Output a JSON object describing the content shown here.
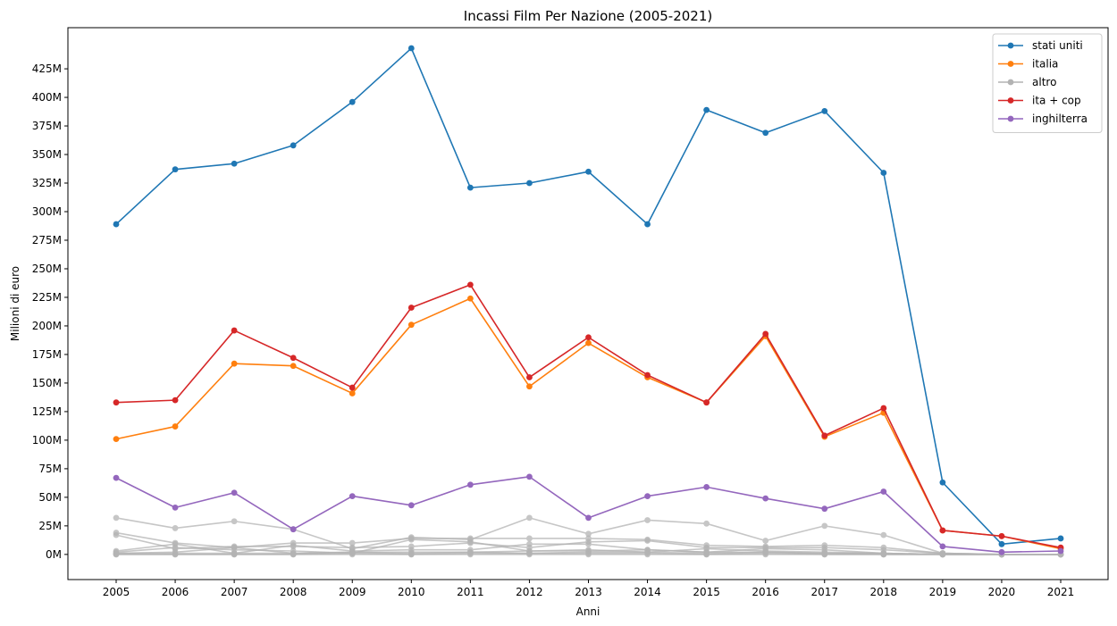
{
  "chart_data": {
    "type": "line",
    "title": "Incassi Film Per Nazione (2005-2021)",
    "xlabel": "Anni",
    "ylabel": "Milioni di euro",
    "x": [
      "2005",
      "2006",
      "2007",
      "2008",
      "2009",
      "2010",
      "2011",
      "2012",
      "2013",
      "2014",
      "2015",
      "2016",
      "2017",
      "2018",
      "2019",
      "2020",
      "2021"
    ],
    "y_ticks": [
      0,
      25,
      50,
      75,
      100,
      125,
      150,
      175,
      200,
      225,
      250,
      275,
      300,
      325,
      350,
      375,
      400,
      425
    ],
    "y_tick_labels": [
      "0M",
      "25M",
      "50M",
      "75M",
      "100M",
      "125M",
      "150M",
      "175M",
      "200M",
      "225M",
      "250M",
      "275M",
      "300M",
      "325M",
      "350M",
      "375M",
      "400M",
      "425M"
    ],
    "ylim": [
      -22,
      461
    ],
    "grid": false,
    "legend_position": "top-right",
    "legend": [
      {
        "label": "stati uniti",
        "color": "#1f77b4"
      },
      {
        "label": "italia",
        "color": "#ff7f0e"
      },
      {
        "label": "altro",
        "color": "#b3b3b3"
      },
      {
        "label": "ita + cop",
        "color": "#d62728"
      },
      {
        "label": "inghilterra",
        "color": "#9467bd"
      }
    ],
    "series": [
      {
        "name": "stati uniti",
        "color": "#1f77b4",
        "values": [
          289,
          337,
          342,
          358,
          396,
          443,
          321,
          325,
          335,
          289,
          389,
          369,
          388,
          334,
          63,
          9,
          14
        ]
      },
      {
        "name": "italia",
        "color": "#ff7f0e",
        "values": [
          101,
          112,
          167,
          165,
          141,
          201,
          224,
          147,
          185,
          155,
          133,
          191,
          103,
          124,
          21,
          16,
          5
        ]
      },
      {
        "name": "ita + cop",
        "color": "#d62728",
        "values": [
          133,
          135,
          196,
          172,
          146,
          216,
          236,
          155,
          190,
          157,
          133,
          193,
          104,
          128,
          21,
          16,
          6
        ]
      },
      {
        "name": "inghilterra",
        "color": "#9467bd",
        "values": [
          67,
          41,
          54,
          22,
          51,
          43,
          61,
          68,
          32,
          51,
          59,
          49,
          40,
          55,
          7,
          2,
          3
        ]
      }
    ],
    "other_series": {
      "color": "#b3b3b3",
      "lines": [
        [
          32,
          23,
          29,
          22,
          5,
          15,
          13,
          32,
          18,
          30,
          27,
          12,
          25,
          17,
          1,
          0,
          0
        ],
        [
          19,
          10,
          6,
          10,
          10,
          14,
          14,
          14,
          14,
          13,
          8,
          7,
          8,
          6,
          1,
          0,
          0
        ],
        [
          17,
          5,
          7,
          7,
          6,
          7,
          10,
          6,
          11,
          12,
          6,
          6,
          6,
          4,
          1,
          0,
          0
        ],
        [
          3,
          9,
          1,
          8,
          3,
          4,
          4,
          9,
          9,
          4,
          2,
          5,
          4,
          1,
          0,
          0,
          0
        ],
        [
          2,
          6,
          4,
          3,
          1,
          13,
          11,
          3,
          4,
          2,
          5,
          3,
          2,
          1,
          0,
          0,
          0
        ],
        [
          1,
          2,
          6,
          1,
          2,
          2,
          2,
          3,
          3,
          4,
          2,
          2,
          1,
          0,
          0,
          0,
          0
        ],
        [
          1,
          1,
          1,
          1,
          2,
          1,
          2,
          1,
          2,
          2,
          1,
          2,
          1,
          1,
          0,
          0,
          0
        ],
        [
          0,
          0,
          0,
          0,
          1,
          0,
          1,
          1,
          1,
          1,
          0,
          1,
          0,
          0,
          0,
          0,
          0
        ],
        [
          0,
          0,
          0,
          0,
          0,
          0,
          0,
          0,
          0,
          0,
          0,
          0,
          0,
          0,
          0,
          0,
          0
        ]
      ]
    }
  }
}
